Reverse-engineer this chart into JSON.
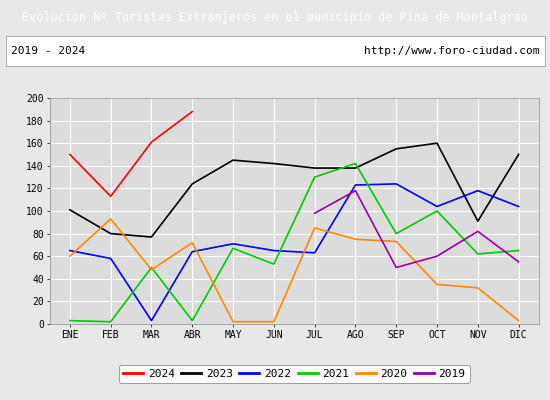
{
  "title": "Evolucion Nº Turistas Extranjeros en el municipio de Pina de Montalgrao",
  "subtitle_left": "2019 - 2024",
  "subtitle_right": "http://www.foro-ciudad.com",
  "title_bg": "#4d7ebf",
  "title_color": "#ffffff",
  "xlabel_months": [
    "ENE",
    "FEB",
    "MAR",
    "ABR",
    "MAY",
    "JUN",
    "JUL",
    "AGO",
    "SEP",
    "OCT",
    "NOV",
    "DIC"
  ],
  "ylim": [
    0,
    200
  ],
  "yticks": [
    0,
    20,
    40,
    60,
    80,
    100,
    120,
    140,
    160,
    180,
    200
  ],
  "series": {
    "2024": {
      "color": "#ff0000",
      "values": [
        150,
        113,
        161,
        188,
        null,
        null,
        null,
        null,
        null,
        null,
        null,
        null
      ]
    },
    "2023": {
      "color": "#000000",
      "values": [
        101,
        80,
        77,
        124,
        145,
        142,
        138,
        138,
        155,
        160,
        91,
        150
      ]
    },
    "2022": {
      "color": "#0000ff",
      "values": [
        65,
        58,
        3,
        64,
        71,
        65,
        63,
        123,
        124,
        104,
        118,
        104
      ]
    },
    "2021": {
      "color": "#00cc00",
      "values": [
        3,
        2,
        50,
        3,
        67,
        53,
        130,
        142,
        80,
        100,
        62,
        65
      ]
    },
    "2020": {
      "color": "#ff8800",
      "values": [
        60,
        93,
        48,
        72,
        2,
        2,
        85,
        75,
        73,
        35,
        32,
        3
      ]
    },
    "2019": {
      "color": "#9900aa",
      "values": [
        null,
        null,
        null,
        null,
        null,
        null,
        98,
        118,
        50,
        60,
        82,
        55
      ]
    }
  },
  "legend_order": [
    "2024",
    "2023",
    "2022",
    "2021",
    "2020",
    "2019"
  ],
  "bg_color": "#e8e8e8",
  "plot_bg": "#dcdcdc",
  "grid_color": "#ffffff",
  "subtitle_box_color": "#ffffff",
  "border_color": "#4d7ebf"
}
